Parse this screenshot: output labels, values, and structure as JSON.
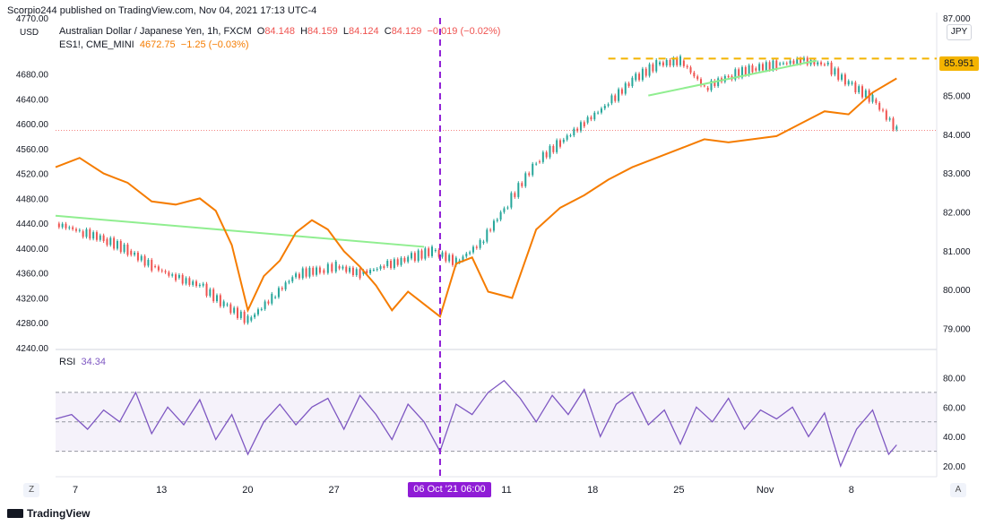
{
  "header": {
    "publisher": "Scorpio244 published on TradingView.com, Nov 04, 2021 17:13 UTC-4"
  },
  "currency_left": "USD",
  "currency_right": "JPY",
  "main_legend": {
    "symbol": "Australian Dollar / Japanese Yen, 1h, FXCM",
    "o_label": "O",
    "o": "84.148",
    "h_label": "H",
    "h": "84.159",
    "l_label": "L",
    "l": "84.124",
    "c_label": "C",
    "c": "84.129",
    "change": "−0.019 (−0.02%)"
  },
  "overlay_legend": {
    "symbol": "ES1!, CME_MINI",
    "value": "4672.75",
    "change": "−1.25 (−0.03%)"
  },
  "rsi_legend": {
    "label": "RSI",
    "value": "34.34"
  },
  "price_tag": "85.951",
  "crosshair_date": "06 Oct '21   06:00",
  "footer": {
    "brand": "TradingView"
  },
  "buttons": {
    "z": "Z",
    "a": "A"
  },
  "colors": {
    "audjpy_up": "#26a69a",
    "audjpy_down": "#ef5350",
    "es": "#f57c00",
    "trend": "#90ee90",
    "rsi": "#7e57c2",
    "crosshair": "#8f1cd6",
    "resistance": "#f4b400"
  },
  "chart_data": [
    {
      "type": "line",
      "title": "Australian Dollar / Japanese Yen, 1h, FXCM",
      "left_axis": {
        "ylim": [
          4240,
          4770
        ],
        "ticks": [
          "4770.00",
          "4680.00",
          "4640.00",
          "4600.00",
          "4560.00",
          "4520.00",
          "4480.00",
          "4440.00",
          "4400.00",
          "4360.00",
          "4320.00",
          "4280.00",
          "4240.00"
        ]
      },
      "right_axis": {
        "ylim": [
          78.5,
          87.0
        ],
        "ticks": [
          "87.000",
          "85.000",
          "84.000",
          "83.000",
          "82.000",
          "81.000",
          "80.000",
          "79.000"
        ]
      },
      "xaxis_ticks": [
        "7",
        "13",
        "20",
        "27",
        "Oct",
        "11",
        "18",
        "25",
        "Nov",
        "8"
      ],
      "series": [
        {
          "name": "Australian Dollar / Japanese Yen, 1h, FXCM",
          "axis": "right",
          "style": "candles",
          "x": [
            0,
            3,
            6,
            9,
            12,
            15,
            18,
            21,
            24,
            27,
            30,
            33,
            35,
            38,
            41,
            44,
            47,
            50,
            53,
            56,
            60,
            63,
            66,
            69,
            72,
            75,
            78,
            81,
            84,
            87,
            90,
            93,
            96,
            99,
            102,
            105
          ],
          "values": [
            81.7,
            81.5,
            81.3,
            81.0,
            80.6,
            80.3,
            80.1,
            79.6,
            79.2,
            79.8,
            80.4,
            80.5,
            80.6,
            80.4,
            80.6,
            80.8,
            81.0,
            80.7,
            81.2,
            82.1,
            83.3,
            83.8,
            84.3,
            84.8,
            85.4,
            85.8,
            85.9,
            85.2,
            85.5,
            85.7,
            85.8,
            85.9,
            85.8,
            85.3,
            84.9,
            84.1
          ]
        },
        {
          "name": "ES1!, CME_MINI",
          "axis": "left",
          "style": "line",
          "x": [
            0,
            3,
            6,
            9,
            12,
            15,
            18,
            20,
            22,
            24,
            26,
            28,
            30,
            32,
            34,
            36,
            38,
            40,
            42,
            44,
            46,
            48,
            50,
            52,
            54,
            57,
            60,
            63,
            66,
            69,
            72,
            75,
            78,
            81,
            84,
            87,
            90,
            93,
            96,
            99,
            102,
            105
          ],
          "values": [
            4530,
            4545,
            4520,
            4505,
            4475,
            4470,
            4480,
            4460,
            4405,
            4300,
            4355,
            4380,
            4425,
            4445,
            4430,
            4395,
            4370,
            4340,
            4300,
            4330,
            4310,
            4290,
            4375,
            4385,
            4330,
            4320,
            4430,
            4465,
            4485,
            4510,
            4530,
            4545,
            4560,
            4575,
            4570,
            4575,
            4580,
            4600,
            4620,
            4615,
            4650,
            4672.75
          ]
        }
      ],
      "trendlines": [
        {
          "from": [
            0,
            81.9
          ],
          "to": [
            46,
            81.1
          ]
        },
        {
          "from": [
            74,
            85.0
          ],
          "to": [
            95,
            85.9
          ]
        }
      ],
      "resistance": 85.951,
      "crosshair_x": 48
    },
    {
      "type": "line",
      "title": "RSI",
      "ylim": [
        14,
        90
      ],
      "ticks": [
        "80.00",
        "60.00",
        "40.00",
        "20.00"
      ],
      "bands": [
        30,
        50,
        70
      ],
      "series": [
        {
          "name": "RSI",
          "x": [
            0,
            2,
            4,
            6,
            8,
            10,
            12,
            14,
            16,
            18,
            20,
            22,
            24,
            26,
            28,
            30,
            32,
            34,
            36,
            38,
            40,
            42,
            44,
            46,
            48,
            50,
            52,
            54,
            56,
            58,
            60,
            62,
            64,
            66,
            68,
            70,
            72,
            74,
            76,
            78,
            80,
            82,
            84,
            86,
            88,
            90,
            92,
            94,
            96,
            98,
            100,
            102,
            104,
            105
          ],
          "values": [
            52,
            55,
            45,
            58,
            50,
            70,
            42,
            60,
            48,
            65,
            38,
            55,
            28,
            50,
            62,
            48,
            60,
            66,
            45,
            68,
            55,
            38,
            62,
            50,
            30,
            62,
            55,
            70,
            78,
            66,
            50,
            68,
            55,
            72,
            40,
            62,
            70,
            48,
            58,
            35,
            60,
            50,
            66,
            45,
            58,
            52,
            60,
            40,
            56,
            20,
            45,
            58,
            28,
            34.34
          ]
        }
      ]
    }
  ]
}
